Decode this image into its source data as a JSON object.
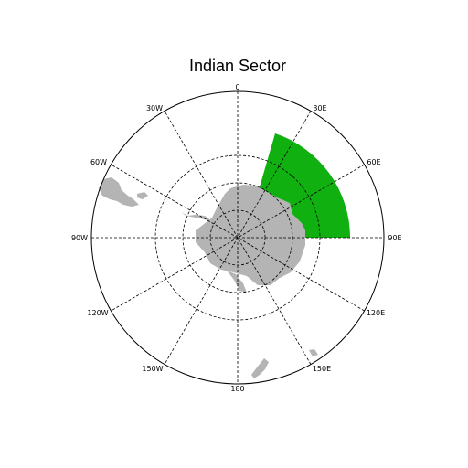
{
  "title": "Indian Sector",
  "colors": {
    "background": "#ffffff",
    "land": "#b4b4b4",
    "sector": "#10b010",
    "graticule": "#000000"
  },
  "longitude_labels": [
    {
      "key": "lon0",
      "text": "0"
    },
    {
      "key": "lon30e",
      "text": "30E"
    },
    {
      "key": "lon60e",
      "text": "60E"
    },
    {
      "key": "lon90e",
      "text": "90E"
    },
    {
      "key": "lon120e",
      "text": "120E"
    },
    {
      "key": "lon150e",
      "text": "150E"
    },
    {
      "key": "lon180",
      "text": "180"
    },
    {
      "key": "lon150w",
      "text": "150W"
    },
    {
      "key": "lon120w",
      "text": "120W"
    },
    {
      "key": "lon90w",
      "text": "90W"
    },
    {
      "key": "lon60w",
      "text": "60W"
    },
    {
      "key": "lon30w",
      "text": "30W"
    }
  ],
  "labels": {
    "lon0": "0",
    "lon30e": "30E",
    "lon60e": "60E",
    "lon90e": "90E",
    "lon120e": "120E",
    "lon150e": "150E",
    "lon180": "180",
    "lon150w": "150W",
    "lon120w": "120W",
    "lon90w": "90W",
    "lon60w": "60W",
    "lon30w": "30W"
  },
  "sector": {
    "lon_min": 20,
    "lon_max": 90
  }
}
